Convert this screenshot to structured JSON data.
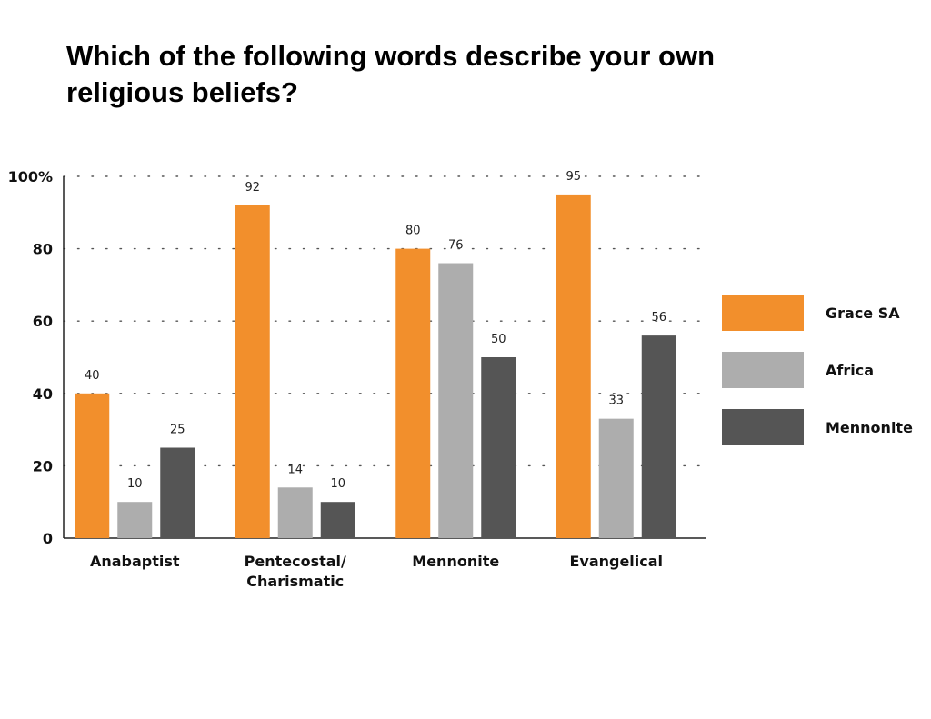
{
  "chart_data": {
    "type": "bar",
    "title": "Which of the following words describe your own religious beliefs?",
    "categories": [
      [
        "Anabaptist"
      ],
      [
        "Pentecostal/",
        "Charismatic"
      ],
      [
        "Mennonite"
      ],
      [
        "Evangelical"
      ]
    ],
    "series": [
      {
        "name": "Grace SA",
        "color": "#F28F2C",
        "values": [
          40,
          92,
          80,
          95
        ]
      },
      {
        "name": "Africa",
        "color": "#ADADAD",
        "values": [
          10,
          14,
          76,
          33
        ]
      },
      {
        "name": "Mennonite",
        "color": "#555555",
        "values": [
          25,
          10,
          50,
          56
        ]
      }
    ],
    "yticks": [
      "0",
      "20",
      "40",
      "60",
      "80",
      "100%"
    ],
    "ylim": [
      0,
      100
    ],
    "grid": true,
    "legend": "right"
  }
}
